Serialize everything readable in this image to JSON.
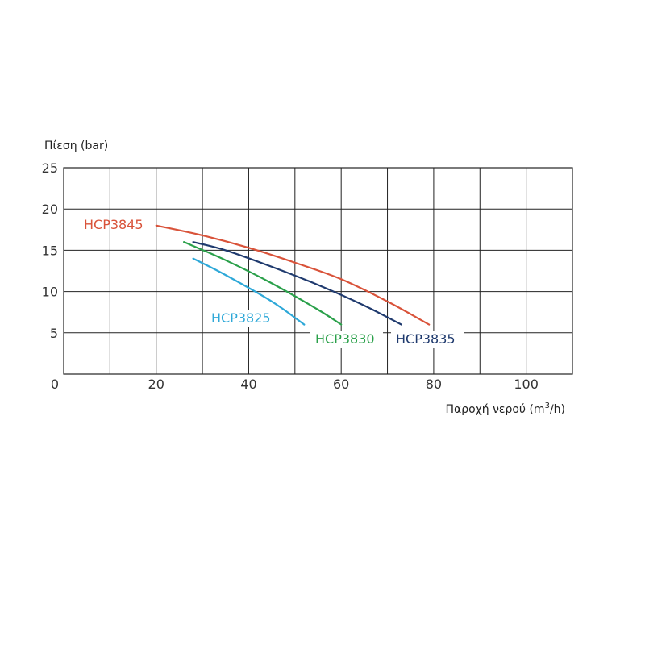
{
  "chart_data": {
    "type": "line",
    "title": "",
    "ylabel": "Πίεση (bar)",
    "xlabel": "Παροχή νερού (m",
    "xlabel_sup": "3",
    "xlabel_suffix": "/h)",
    "xlim": [
      0,
      110
    ],
    "ylim": [
      0,
      25
    ],
    "grid": true,
    "x_grid_step": 10,
    "y_grid_step": 5,
    "x_ticks": [
      0,
      20,
      40,
      60,
      80,
      100
    ],
    "y_ticks": [
      5,
      10,
      15,
      20,
      25
    ],
    "x_tick_labels": [
      "0",
      "20",
      "40",
      "60",
      "80",
      "100"
    ],
    "y_tick_labels": [
      "5",
      "10",
      "15",
      "20",
      "25"
    ],
    "series": [
      {
        "name": "HCP3845",
        "color": "#d9533a",
        "x": [
          20,
          30,
          40,
          50,
          60,
          70,
          79
        ],
        "y": [
          18,
          16.8,
          15.3,
          13.5,
          11.5,
          8.8,
          6
        ]
      },
      {
        "name": "HCP3835",
        "color": "#1f3a6e",
        "x": [
          28,
          35,
          45,
          55,
          65,
          73
        ],
        "y": [
          16,
          15,
          13,
          10.8,
          8.3,
          6
        ]
      },
      {
        "name": "HCP3830",
        "color": "#2aa04a",
        "x": [
          26,
          35,
          45,
          55,
          60
        ],
        "y": [
          16,
          13.8,
          11,
          7.8,
          6
        ]
      },
      {
        "name": "HCP3825",
        "color": "#2ea8d8",
        "x": [
          28,
          35,
          45,
          52
        ],
        "y": [
          14,
          12,
          8.8,
          6
        ]
      }
    ]
  }
}
